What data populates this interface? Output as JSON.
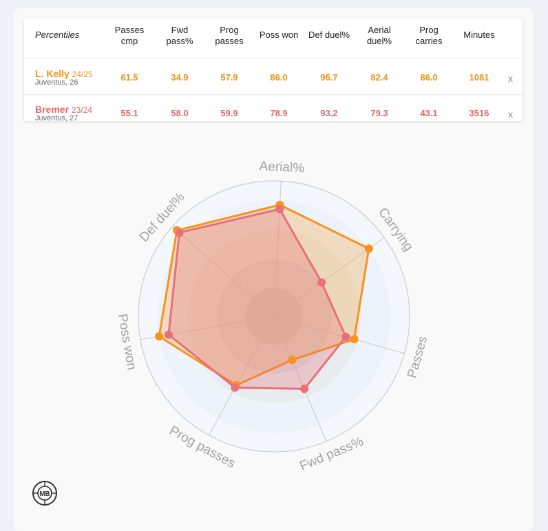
{
  "table": {
    "corner_label": "Percentiles",
    "columns": [
      {
        "line1": "Passes",
        "line2": "cmp"
      },
      {
        "line1": "Fwd",
        "line2": "pass%"
      },
      {
        "line1": "Prog",
        "line2": "passes"
      },
      {
        "line1": "Poss won",
        "line2": ""
      },
      {
        "line1": "Def duel%",
        "line2": ""
      },
      {
        "line1": "Aerial",
        "line2": "duel%"
      },
      {
        "line1": "Prog",
        "line2": "carries"
      },
      {
        "line1": "Minutes",
        "line2": ""
      }
    ],
    "rows": [
      {
        "name": "L. Kelly",
        "season": "24/25",
        "club": "Juventus, 26",
        "values": [
          "61.5",
          "34.9",
          "57.9",
          "86.0",
          "95.7",
          "82.4",
          "86.0",
          "1081"
        ],
        "remove": "x"
      },
      {
        "name": "Bremer",
        "season": "23/24",
        "club": "Juventus, 27",
        "values": [
          "55.1",
          "58.0",
          "59.9",
          "78.9",
          "93.2",
          "79.3",
          "43.1",
          "3516"
        ],
        "remove": "x"
      }
    ]
  },
  "colors": {
    "kelly": "#f7931e",
    "bremer": "#e8707a"
  },
  "chart_data": {
    "type": "radar",
    "axes": [
      "Aerial%",
      "Carrying",
      "Passes",
      "Fwd pass%",
      "Prog passes",
      "Poss won",
      "Def duel%"
    ],
    "range": [
      0,
      100
    ],
    "series": [
      {
        "name": "L. Kelly 24/25",
        "values": [
          82.4,
          86.0,
          61.5,
          34.9,
          57.9,
          86.0,
          95.7
        ]
      },
      {
        "name": "Bremer 23/24",
        "values": [
          79.3,
          43.1,
          55.1,
          58.0,
          59.9,
          78.9,
          93.2
        ]
      }
    ]
  },
  "logo": {
    "text": "MB"
  }
}
